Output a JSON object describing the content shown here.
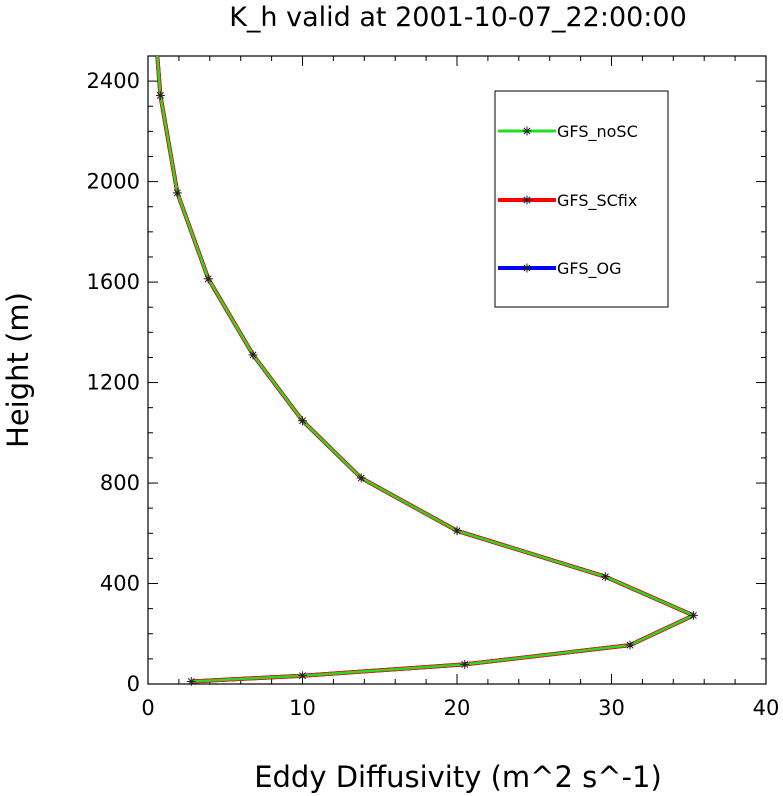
{
  "chart_data": {
    "type": "line",
    "title": "K_h valid at 2001-10-07_22:00:00",
    "xlabel": "Eddy Diffusivity (m^2 s^-1)",
    "ylabel": "Height (m)",
    "xlim": [
      0,
      40
    ],
    "ylim": [
      0,
      2500
    ],
    "xticks": [
      "0",
      "10",
      "20",
      "30",
      "40"
    ],
    "yticks": [
      "0",
      "400",
      "800",
      "1200",
      "1600",
      "2000",
      "2400"
    ],
    "grid": false,
    "legend_position": "top-right",
    "series": [
      {
        "name": "GFS_OG",
        "color": "#0000ff",
        "x": [
          2.8,
          10.0,
          20.5,
          31.2,
          35.3,
          29.6,
          20.0,
          13.8,
          10.0,
          6.8,
          3.9,
          1.9,
          0.8,
          0.6
        ],
        "y": [
          10,
          33,
          78,
          155,
          273,
          427,
          610,
          820,
          1048,
          1310,
          1613,
          1955,
          2343,
          2500
        ]
      },
      {
        "name": "GFS_SCfix",
        "color": "#ff0000",
        "x": [
          2.8,
          10.0,
          20.5,
          31.2,
          35.3,
          29.6,
          20.0,
          13.8,
          10.0,
          6.8,
          3.9,
          1.9,
          0.8,
          0.6
        ],
        "y": [
          10,
          33,
          78,
          155,
          273,
          427,
          610,
          820,
          1048,
          1310,
          1613,
          1955,
          2343,
          2500
        ]
      },
      {
        "name": "GFS_noSC",
        "color": "#22dd22",
        "x": [
          2.8,
          10.0,
          20.5,
          31.2,
          35.3,
          29.6,
          20.0,
          13.8,
          10.0,
          6.8,
          3.9,
          1.9,
          0.8,
          0.6
        ],
        "y": [
          10,
          33,
          78,
          155,
          273,
          427,
          610,
          820,
          1048,
          1310,
          1613,
          1955,
          2343,
          2500
        ]
      }
    ],
    "legend": [
      {
        "name": "GFS_noSC",
        "color": "#22dd22"
      },
      {
        "name": "GFS_SCfix",
        "color": "#ff0000"
      },
      {
        "name": "GFS_OG",
        "color": "#0000ff"
      }
    ]
  }
}
